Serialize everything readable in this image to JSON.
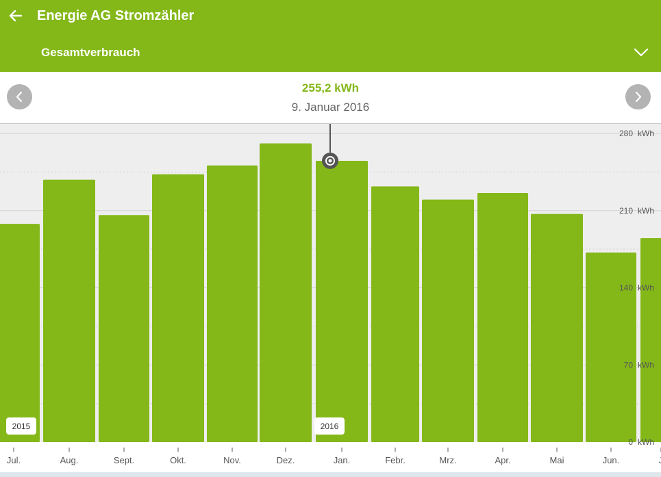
{
  "app_bar": {
    "title": "Energie AG Stromzähler",
    "subtitle": "Gesamtverbrauch",
    "back_icon": "arrow-left-icon",
    "expand_icon": "chevron-down-icon"
  },
  "selection": {
    "value": "255,2 kWh",
    "date": "9. Januar 2016",
    "prev_icon": "chevron-left-icon",
    "next_icon": "chevron-right-icon"
  },
  "colors": {
    "accent": "#84b819",
    "bar": "#84b819",
    "chart_bg": "#eeeeee",
    "nav_button": "#b3b3b3",
    "marker": "#555555"
  },
  "chart_data": {
    "type": "bar",
    "categories": [
      "Jul.",
      "Aug.",
      "Sept.",
      "Okt.",
      "Nov.",
      "Dez.",
      "Jan.",
      "Febr.",
      "Mrz.",
      "Apr.",
      "Mai",
      "Jun.",
      "J"
    ],
    "values": [
      198,
      238,
      206,
      243,
      251,
      271,
      255.2,
      232,
      220,
      226,
      207,
      172,
      185
    ],
    "selected_category": "Jan.",
    "year_labels": [
      {
        "category": "Jul.",
        "label": "2015"
      },
      {
        "category": "Jan.",
        "label": "2016"
      }
    ],
    "ylim": [
      0,
      280
    ],
    "y_ticks": [
      {
        "value": 280,
        "label": "280"
      },
      {
        "value": 210,
        "label": "210"
      },
      {
        "value": 140,
        "label": "140"
      },
      {
        "value": 70,
        "label": "70"
      },
      {
        "value": 0,
        "label": "0"
      }
    ],
    "y_unit": "kWh",
    "grid": true,
    "title": "",
    "xlabel": "",
    "ylabel": ""
  }
}
